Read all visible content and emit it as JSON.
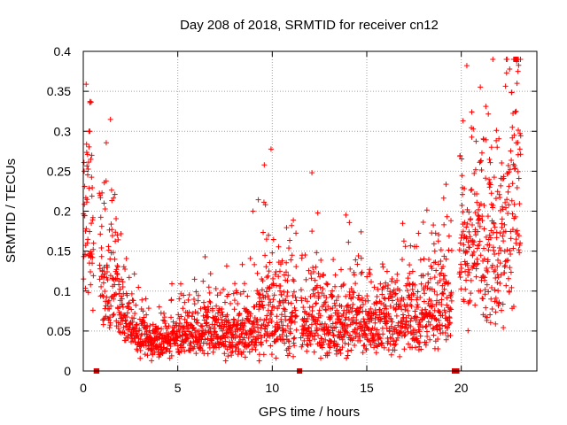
{
  "chart_data": {
    "type": "scatter",
    "title": "Day 208 of 2018, SRMTID for receiver cn12",
    "xlabel": "GPS time / hours",
    "ylabel": "SRMTID / TECUs",
    "xlim": [
      0,
      24
    ],
    "ylim": [
      0,
      0.4
    ],
    "x_ticks": [
      0,
      5,
      10,
      15,
      20
    ],
    "x_tick_labels": [
      "0",
      "5",
      "10",
      "15",
      "20"
    ],
    "y_ticks": [
      0,
      0.05,
      0.1,
      0.15,
      0.2,
      0.25,
      0.3,
      0.35,
      0.4
    ],
    "y_tick_labels": [
      "0",
      "0.05",
      "0.1",
      "0.15",
      "0.2",
      "0.25",
      "0.3",
      "0.35",
      "0.4"
    ],
    "grid": true,
    "marker": "+",
    "color": "#ff0000",
    "gap_color": "#e00000",
    "data_gaps": [
      {
        "start": 0.55,
        "end": 0.85
      },
      {
        "start": 11.3,
        "end": 11.5
      },
      {
        "start": 19.5,
        "end": 19.9
      }
    ],
    "series": [
      {
        "name": "SRMTID",
        "profile": [
          [
            0.0,
            0.19
          ],
          [
            0.3,
            0.22
          ],
          [
            0.6,
            0.13
          ],
          [
            1.0,
            0.13
          ],
          [
            1.5,
            0.12
          ],
          [
            2.0,
            0.08
          ],
          [
            2.5,
            0.055
          ],
          [
            3.0,
            0.045
          ],
          [
            4.0,
            0.035
          ],
          [
            5.0,
            0.045
          ],
          [
            6.0,
            0.05
          ],
          [
            7.0,
            0.05
          ],
          [
            8.0,
            0.048
          ],
          [
            9.0,
            0.055
          ],
          [
            9.5,
            0.07
          ],
          [
            10.0,
            0.07
          ],
          [
            11.0,
            0.06
          ],
          [
            12.0,
            0.065
          ],
          [
            13.0,
            0.06
          ],
          [
            14.0,
            0.055
          ],
          [
            15.0,
            0.06
          ],
          [
            16.0,
            0.06
          ],
          [
            17.0,
            0.065
          ],
          [
            18.0,
            0.075
          ],
          [
            19.0,
            0.085
          ],
          [
            19.6,
            0.09
          ],
          [
            20.0,
            0.16
          ],
          [
            21.0,
            0.16
          ],
          [
            22.0,
            0.15
          ],
          [
            22.5,
            0.18
          ],
          [
            23.0,
            0.25
          ]
        ],
        "spread": [
          [
            0.0,
            0.3
          ],
          [
            1.0,
            0.45
          ],
          [
            2.0,
            0.35
          ],
          [
            3.0,
            0.35
          ],
          [
            5.0,
            0.35
          ],
          [
            9.0,
            0.45
          ],
          [
            10.0,
            0.5
          ],
          [
            12.0,
            0.45
          ],
          [
            15.0,
            0.45
          ],
          [
            18.0,
            0.45
          ],
          [
            19.6,
            0.45
          ],
          [
            20.0,
            0.35
          ],
          [
            22.0,
            0.45
          ],
          [
            23.0,
            0.5
          ]
        ],
        "outliers": [
          [
            0.3,
            0.3
          ],
          [
            0.35,
            0.3
          ],
          [
            0.4,
            0.265
          ],
          [
            0.45,
            0.27
          ],
          [
            1.1,
            0.21
          ],
          [
            1.8,
            0.17
          ],
          [
            9.7,
            0.165
          ],
          [
            9.8,
            0.17
          ],
          [
            12.1,
            0.175
          ],
          [
            12.3,
            0.13
          ],
          [
            18.6,
            0.15
          ],
          [
            19.2,
            0.14
          ],
          [
            20.9,
            0.185
          ],
          [
            21.5,
            0.23
          ],
          [
            21.6,
            0.28
          ],
          [
            21.9,
            0.28
          ],
          [
            22.7,
            0.305
          ],
          [
            22.8,
            0.295
          ],
          [
            22.9,
            0.325
          ],
          [
            22.95,
            0.36
          ],
          [
            23.0,
            0.375
          ],
          [
            23.02,
            0.39
          ]
        ],
        "count": 2400,
        "x_start": 0.0,
        "x_end": 23.15
      }
    ]
  }
}
